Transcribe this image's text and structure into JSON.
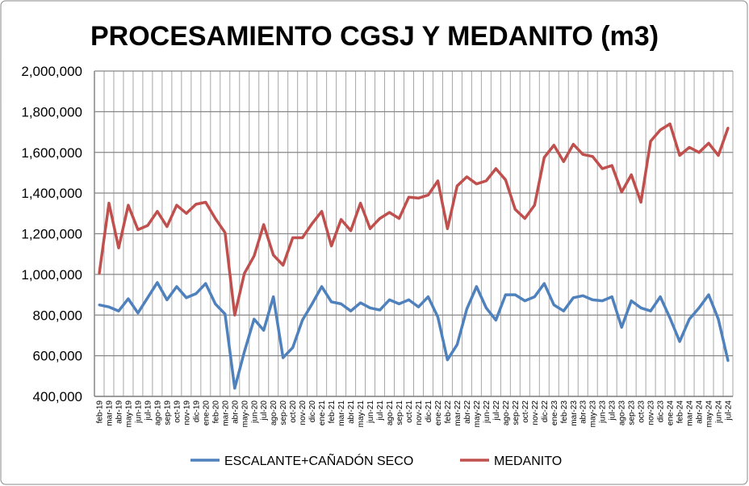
{
  "chart_data": {
    "type": "line",
    "title": "PROCESAMIENTO CGSJ Y MEDANITO (m3)",
    "xlabel": "",
    "ylabel": "",
    "ylim": [
      400000,
      2000000
    ],
    "yticks": [
      400000,
      600000,
      800000,
      1000000,
      1200000,
      1400000,
      1600000,
      1800000,
      2000000
    ],
    "ytick_labels": [
      "400,000",
      "600,000",
      "800,000",
      "1,000,000",
      "1,200,000",
      "1,400,000",
      "1,600,000",
      "1,800,000",
      "2,000,000"
    ],
    "grid": true,
    "legend_position": "bottom",
    "categories": [
      "feb-19",
      "mar-19",
      "abr-19",
      "may-19",
      "jun-19",
      "jul-19",
      "ago-19",
      "sep-19",
      "oct-19",
      "nov-19",
      "dic-19",
      "ene-20",
      "feb-20",
      "mar-20",
      "abr-20",
      "may-20",
      "jun-20",
      "jul-20",
      "ago-20",
      "sep-20",
      "oct-20",
      "nov-20",
      "dic-20",
      "ene-21",
      "feb-21",
      "mar-21",
      "abr-21",
      "may-21",
      "jun-21",
      "jul-21",
      "ago-21",
      "sep-21",
      "oct-21",
      "nov-21",
      "dic-21",
      "ene-22",
      "feb-22",
      "mar-22",
      "abr-22",
      "may-22",
      "jun-22",
      "jul-22",
      "ago-22",
      "sep-22",
      "oct-22",
      "nov-22",
      "dic-22",
      "ene-23",
      "feb-23",
      "mar-23",
      "abr-23",
      "may-23",
      "jun-23",
      "jul-23",
      "ago-23",
      "sep-23",
      "oct-23",
      "nov-23",
      "dic-23",
      "ene-24",
      "feb-24",
      "mar-24",
      "abr-24",
      "may-24",
      "jun-24",
      "jul-24"
    ],
    "series": [
      {
        "name": "ESCALANTE+CAÑADÓN SECO",
        "color": "#4F81BD",
        "values": [
          850000,
          840000,
          820000,
          880000,
          810000,
          885000,
          960000,
          875000,
          940000,
          885000,
          905000,
          955000,
          855000,
          805000,
          440000,
          620000,
          780000,
          725000,
          890000,
          590000,
          640000,
          775000,
          855000,
          940000,
          865000,
          855000,
          820000,
          860000,
          835000,
          825000,
          875000,
          855000,
          875000,
          840000,
          890000,
          790000,
          580000,
          655000,
          830000,
          940000,
          835000,
          775000,
          900000,
          900000,
          870000,
          890000,
          955000,
          850000,
          820000,
          885000,
          895000,
          875000,
          870000,
          890000,
          740000,
          870000,
          835000,
          820000,
          890000,
          785000,
          670000,
          780000,
          835000,
          900000,
          780000,
          575000
        ]
      },
      {
        "name": "MEDANITO",
        "color": "#C0504D",
        "values": [
          1005000,
          1350000,
          1130000,
          1340000,
          1220000,
          1240000,
          1310000,
          1235000,
          1340000,
          1300000,
          1345000,
          1355000,
          1275000,
          1205000,
          800000,
          1005000,
          1090000,
          1245000,
          1095000,
          1045000,
          1180000,
          1180000,
          1250000,
          1310000,
          1140000,
          1270000,
          1215000,
          1350000,
          1225000,
          1275000,
          1305000,
          1275000,
          1380000,
          1375000,
          1390000,
          1460000,
          1225000,
          1435000,
          1480000,
          1445000,
          1460000,
          1520000,
          1465000,
          1320000,
          1275000,
          1340000,
          1575000,
          1635000,
          1555000,
          1640000,
          1590000,
          1580000,
          1520000,
          1535000,
          1405000,
          1490000,
          1355000,
          1655000,
          1710000,
          1740000,
          1585000,
          1625000,
          1600000,
          1645000,
          1585000,
          1720000
        ]
      }
    ]
  }
}
